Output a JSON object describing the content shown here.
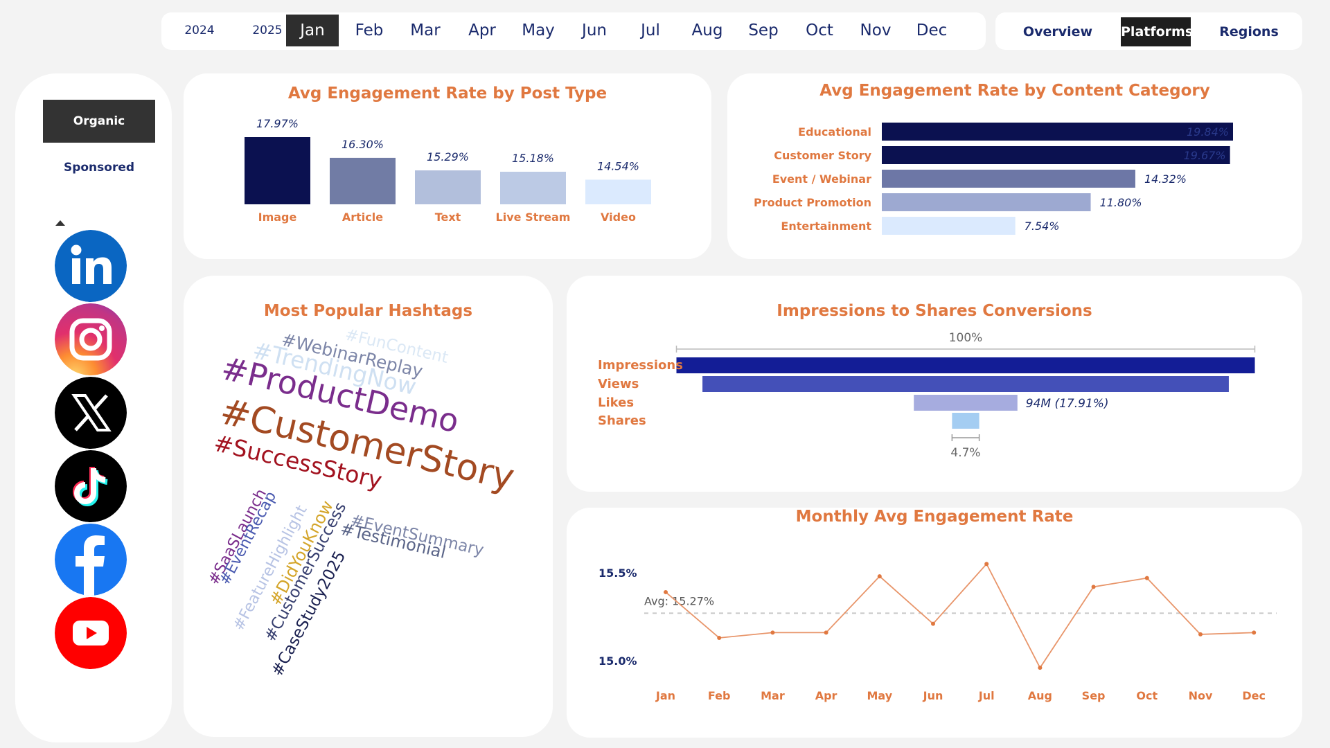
{
  "filters": {
    "years": [
      "2024",
      "2025"
    ],
    "months": [
      "Jan",
      "Feb",
      "Mar",
      "Apr",
      "May",
      "Jun",
      "Jul",
      "Aug",
      "Sep",
      "Oct",
      "Nov",
      "Dec"
    ],
    "selected_month": "Jan"
  },
  "views": {
    "items": [
      "Overview",
      "Platforms",
      "Regions"
    ],
    "selected": "Platforms"
  },
  "sidebar": {
    "types": [
      "Organic",
      "Sponsored"
    ],
    "selected_type": "Organic",
    "platforms": [
      "linkedin-icon",
      "instagram-icon",
      "x-icon",
      "tiktok-icon",
      "facebook-icon",
      "youtube-icon"
    ]
  },
  "colors": {
    "title_orange": "#e07840",
    "navy": "#0b1150",
    "funnel_blue": "#131d96"
  },
  "chart_data": [
    {
      "type": "bar",
      "title": "Avg Engagement Rate by Post Type",
      "categories": [
        "Image",
        "Article",
        "Text",
        "Live Stream",
        "Video"
      ],
      "values": [
        17.97,
        16.3,
        15.29,
        15.18,
        14.54
      ],
      "data_labels": [
        "17.97%",
        "16.30%",
        "15.29%",
        "15.18%",
        "14.54%"
      ],
      "colors": [
        "#0b1150",
        "#717ca5",
        "#b2bfdc",
        "#bccae5",
        "#dbeafe"
      ]
    },
    {
      "type": "bar",
      "orientation": "horizontal",
      "title": "Avg Engagement Rate by Content Category",
      "categories": [
        "Educational",
        "Customer Story",
        "Event / Webinar",
        "Product Promotion",
        "Entertainment"
      ],
      "values": [
        19.84,
        19.67,
        14.32,
        11.8,
        7.54
      ],
      "data_labels": [
        "19.84%",
        "19.67%",
        "14.32%",
        "11.80%",
        "7.54%"
      ],
      "colors": [
        "#0b1150",
        "#0b1150",
        "#6d77a6",
        "#9da9d1",
        "#dbeafe"
      ]
    },
    {
      "type": "wordcloud",
      "title": "Most Popular Hashtags",
      "words": [
        {
          "text": "#CustomerStory",
          "color": "#a34a22"
        },
        {
          "text": "#ProductDemo",
          "color": "#7a2d8c"
        },
        {
          "text": "#SuccessStory",
          "color": "#a2121f"
        },
        {
          "text": "#TrendingNow",
          "color": "#cfe0f2"
        },
        {
          "text": "#WebinarReplay",
          "color": "#7d86a8"
        },
        {
          "text": "#FunContent",
          "color": "#dbe8f5"
        },
        {
          "text": "#EventSummary",
          "color": "#7d86a8"
        },
        {
          "text": "#Testimonial",
          "color": "#5a6488"
        },
        {
          "text": "#SaaSLaunch",
          "color": "#7a2d8c"
        },
        {
          "text": "#EventRecap",
          "color": "#4a5ab0"
        },
        {
          "text": "#FeatureHighlight",
          "color": "#b7c3e4"
        },
        {
          "text": "#DidYouKnow",
          "color": "#d4a52a"
        },
        {
          "text": "#CustomerSuccess",
          "color": "#384070"
        },
        {
          "text": "#CaseStudy2025",
          "color": "#1a2050"
        }
      ]
    },
    {
      "type": "funnel",
      "title": "Impressions to Shares Conversions",
      "stages": [
        "Impressions",
        "Views",
        "Likes",
        "Shares"
      ],
      "relative": [
        100,
        91.0,
        17.91,
        4.7
      ],
      "top_label": "100%",
      "likes_label": "94M (17.91%)",
      "bottom_label": "4.7%",
      "colors": [
        "#131d96",
        "#4450b8",
        "#a6acdf",
        "#a4cdf2"
      ]
    },
    {
      "type": "line",
      "title": "Monthly Avg Engagement Rate",
      "categories": [
        "Jan",
        "Feb",
        "Mar",
        "Apr",
        "May",
        "Jun",
        "Jul",
        "Aug",
        "Sep",
        "Oct",
        "Nov",
        "Dec"
      ],
      "values": [
        15.39,
        15.13,
        15.16,
        15.16,
        15.48,
        15.21,
        15.55,
        14.96,
        15.42,
        15.47,
        15.15,
        15.16
      ],
      "ylim": [
        14.85,
        15.65
      ],
      "yticks": [
        15.0,
        15.5
      ],
      "ytick_labels": [
        "15.0%",
        "15.5%"
      ],
      "avg": 15.27,
      "avg_label": "Avg: 15.27%",
      "line_color": "#e8956a"
    }
  ]
}
